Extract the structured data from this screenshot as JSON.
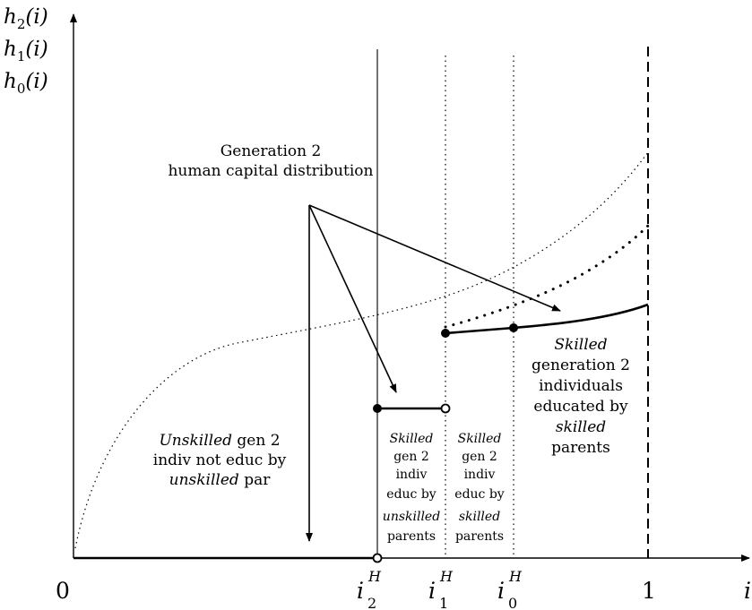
{
  "axes": {
    "y_labels": [
      "h",
      "2",
      "(i)",
      "h",
      "1",
      "(i)",
      "h",
      "0",
      "(i)"
    ],
    "x_tick_labels": [
      "0",
      "1",
      "i"
    ],
    "i2H": {
      "base": "i",
      "sup": "H",
      "sub": "2"
    },
    "i1H": {
      "base": "i",
      "sup": "H",
      "sub": "1"
    },
    "i0H": {
      "base": "i",
      "sup": "H",
      "sub": "0"
    }
  },
  "annotations": {
    "gen2_line1": "Generation 2",
    "gen2_line2": "human capital distribution",
    "unskilled_l1_em": "Unskilled",
    "unskilled_l1_rest": " gen 2",
    "unskilled_l2": "indiv not educ by",
    "unskilled_l3_em": "unskilled",
    "unskilled_l3_rest": " par",
    "skilledA": [
      "Skilled",
      "gen 2",
      "indiv",
      "educ by",
      "unskilled",
      "parents"
    ],
    "skilledB": [
      "Skilled",
      "gen 2",
      "indiv",
      "educ by",
      "skilled",
      "parents"
    ],
    "skilledC": [
      "Skilled",
      "generation 2",
      "individuals",
      "educated by",
      "skilled",
      "parents"
    ]
  }
}
